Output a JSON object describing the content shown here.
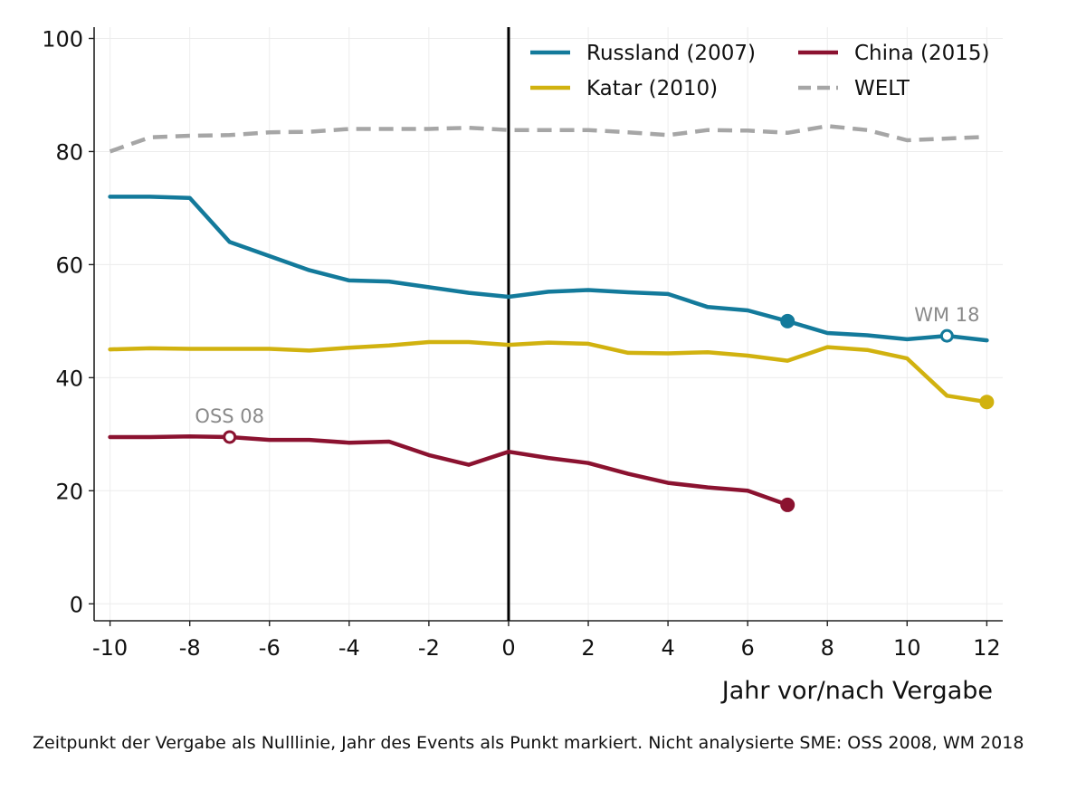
{
  "caption": "Zeitpunkt der Vergabe als Nulllinie, Jahr des Events als Punkt markiert. Nicht analysierte SME: OSS 2008, WM 2018",
  "chart_data": {
    "type": "line",
    "xlabel": "Jahr vor/nach Vergabe",
    "ylabel": "",
    "xlim": [
      -10.4,
      12.4
    ],
    "ylim": [
      -3,
      102
    ],
    "x_ticks": [
      -10,
      -8,
      -6,
      -4,
      -2,
      0,
      2,
      4,
      6,
      8,
      10,
      12
    ],
    "y_ticks": [
      0,
      20,
      40,
      60,
      80,
      100
    ],
    "grid": true,
    "vertical_reference_line_x": 0,
    "legend_position": "top-right",
    "series": [
      {
        "name": "Russland (2007)",
        "color": "#137a9b",
        "dash": false,
        "x": [
          -10,
          -9,
          -8,
          -7,
          -6,
          -5,
          -4,
          -3,
          -2,
          -1,
          0,
          1,
          2,
          3,
          4,
          5,
          6,
          7,
          8,
          9,
          10,
          11,
          12
        ],
        "values": [
          72,
          72,
          71.8,
          64,
          61.5,
          59,
          57.2,
          57,
          56,
          55,
          54.3,
          55.2,
          55.5,
          55.1,
          54.8,
          52.5,
          51.9,
          50,
          47.9,
          47.5,
          46.8,
          47.4,
          46.6
        ]
      },
      {
        "name": "Katar (2010)",
        "color": "#d1b20f",
        "dash": false,
        "x": [
          -10,
          -9,
          -8,
          -7,
          -6,
          -5,
          -4,
          -3,
          -2,
          -1,
          0,
          1,
          2,
          3,
          4,
          5,
          6,
          7,
          8,
          9,
          10,
          11,
          12
        ],
        "values": [
          45,
          45.2,
          45.1,
          45.1,
          45.1,
          44.8,
          45.3,
          45.7,
          46.3,
          46.3,
          45.8,
          46.2,
          46,
          44.4,
          44.3,
          44.5,
          43.9,
          43,
          45.4,
          44.9,
          43.4,
          36.8,
          35.7
        ]
      },
      {
        "name": "China (2015)",
        "color": "#8b1230",
        "dash": false,
        "x": [
          -10,
          -9,
          -8,
          -7,
          -6,
          -5,
          -4,
          -3,
          -2,
          -1,
          0,
          1,
          2,
          3,
          4,
          5,
          6,
          7
        ],
        "values": [
          29.5,
          29.5,
          29.6,
          29.5,
          29,
          29,
          28.5,
          28.7,
          26.3,
          24.6,
          26.9,
          25.8,
          24.9,
          23,
          21.4,
          20.6,
          20,
          17.5
        ]
      },
      {
        "name": "WELT",
        "color": "#a6a6a6",
        "dash": true,
        "x": [
          -10,
          -9,
          -8,
          -7,
          -6,
          -5,
          -4,
          -3,
          -2,
          -1,
          0,
          1,
          2,
          3,
          4,
          5,
          6,
          7,
          8,
          9,
          10,
          11,
          12
        ],
        "values": [
          80,
          82.5,
          82.8,
          82.9,
          83.4,
          83.5,
          84,
          84,
          84,
          84.2,
          83.8,
          83.8,
          83.8,
          83.4,
          82.9,
          83.8,
          83.7,
          83.3,
          84.5,
          83.8,
          82,
          82.3,
          82.6
        ]
      }
    ],
    "markers": [
      {
        "series": "Russland (2007)",
        "x": 7,
        "y": 50,
        "style": "filled"
      },
      {
        "series": "Katar (2010)",
        "x": 12,
        "y": 35.7,
        "style": "filled"
      },
      {
        "series": "China (2015)",
        "x": 7,
        "y": 17.5,
        "style": "filled"
      },
      {
        "series": "China (2015)",
        "x": -7,
        "y": 29.5,
        "style": "hollow",
        "label": "OSS 08"
      },
      {
        "series": "Russland (2007)",
        "x": 11,
        "y": 47.4,
        "style": "hollow",
        "label": "WM 18"
      }
    ]
  }
}
